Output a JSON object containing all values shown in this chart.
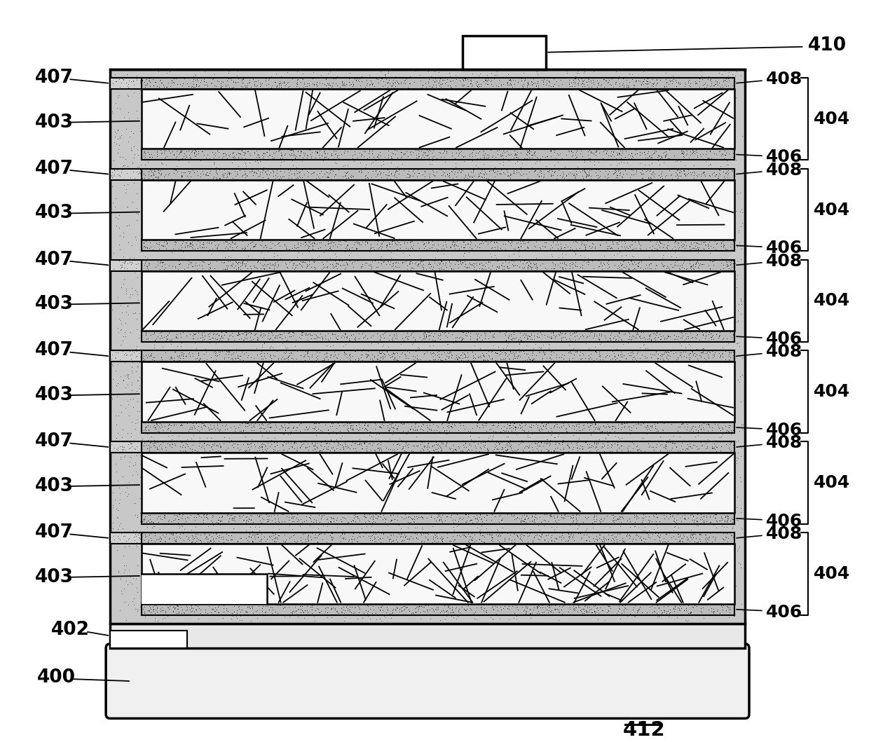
{
  "fig_width": 12.4,
  "fig_height": 10.59,
  "dpi": 100,
  "bg_color": "#ffffff",
  "n_layers": 6,
  "body_fill": "#c8c8c8",
  "electrode_fill": "#b8b8b8",
  "nanowire_fill": "#f8f8f8",
  "substrate_fill": "#f0f0f0",
  "base_fill": "#e8e8e8",
  "dark_line": "#000000",
  "labels_left": [
    "407",
    "403",
    "407",
    "403",
    "407",
    "403",
    "407",
    "403",
    "407",
    "403",
    "407",
    "403"
  ],
  "labels_right_top": "408",
  "labels_right_bottom": "406",
  "label_brace": "404",
  "label_sub": "400",
  "label_base": "402",
  "label_contact": "410",
  "label_fig": "412"
}
